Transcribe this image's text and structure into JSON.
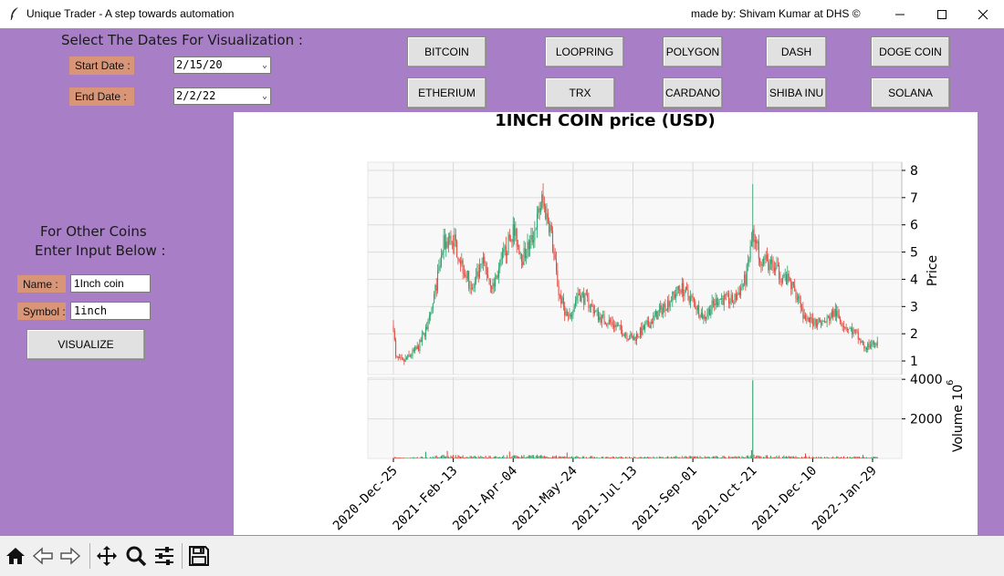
{
  "window": {
    "title": "Unique Trader - A step towards automation",
    "credit": "made by: Shivam Kumar at DHS ©",
    "icons": [
      "feather-icon",
      "minimize-icon",
      "maximize-icon",
      "close-icon"
    ]
  },
  "dates": {
    "heading": "Select The Dates For Visualization :",
    "start_label": "Start Date :",
    "start_value": "2/15/20",
    "end_label": "End Date :",
    "end_value": "2/2/22"
  },
  "coins": {
    "row1": [
      "BITCOIN",
      "LOOPRING",
      "POLYGON",
      "DASH",
      "DOGE COIN"
    ],
    "row2": [
      "ETHERIUM",
      "TRX",
      "CARDANO",
      "SHIBA INU",
      "SOLANA"
    ]
  },
  "other": {
    "heading1": "For Other Coins",
    "heading2": "Enter Input Below :",
    "name_label": "Name :",
    "name_value": "1Inch coin",
    "symbol_label": "Symbol :",
    "symbol_value": "1inch",
    "visualize_label": "VISUALIZE"
  },
  "toolbar": {
    "icons": [
      "home-icon",
      "back-icon",
      "forward-icon",
      "pan-icon",
      "zoom-icon",
      "configure-icon",
      "save-icon"
    ]
  },
  "chart_data": {
    "type": "candlestick",
    "title": "1INCH COIN price (USD)",
    "ylabel": "Price",
    "ylim": [
      0.5,
      8.3
    ],
    "yticks": [
      1,
      2,
      3,
      4,
      5,
      6,
      7,
      8
    ],
    "volume_label": "Volume  10",
    "volume_exponent": "6",
    "volume_ylim": [
      0,
      4100
    ],
    "volume_yticks": [
      2000,
      4000
    ],
    "xticks": [
      "2020-Dec-25",
      "2021-Feb-13",
      "2021-Apr-04",
      "2021-May-24",
      "2021-Jul-13",
      "2021-Sep-01",
      "2021-Oct-21",
      "2021-Dec-10",
      "2022-Jan-29"
    ],
    "xtick_dates": [
      "2020-12-25",
      "2021-02-13",
      "2021-04-04",
      "2021-05-24",
      "2021-07-13",
      "2021-09-01",
      "2021-10-21",
      "2021-12-10",
      "2022-01-29"
    ],
    "x_start": "2020-12-25",
    "x_end": "2022-02-02",
    "grid": true,
    "up_color": "#26a269",
    "down_color": "#e5453b",
    "close_anchors": [
      {
        "date": "2020-12-25",
        "price": 2.3
      },
      {
        "date": "2020-12-27",
        "price": 1.1
      },
      {
        "date": "2021-01-02",
        "price": 0.95
      },
      {
        "date": "2021-01-15",
        "price": 1.5
      },
      {
        "date": "2021-01-25",
        "price": 2.6
      },
      {
        "date": "2021-02-05",
        "price": 5.3
      },
      {
        "date": "2021-02-13",
        "price": 5.5
      },
      {
        "date": "2021-02-20",
        "price": 4.6
      },
      {
        "date": "2021-03-01",
        "price": 3.6
      },
      {
        "date": "2021-03-10",
        "price": 4.6
      },
      {
        "date": "2021-03-18",
        "price": 3.7
      },
      {
        "date": "2021-03-28",
        "price": 5.0
      },
      {
        "date": "2021-04-04",
        "price": 5.8
      },
      {
        "date": "2021-04-12",
        "price": 4.8
      },
      {
        "date": "2021-04-20",
        "price": 5.5
      },
      {
        "date": "2021-04-28",
        "price": 6.9
      },
      {
        "date": "2021-05-05",
        "price": 5.9
      },
      {
        "date": "2021-05-12",
        "price": 3.5
      },
      {
        "date": "2021-05-20",
        "price": 2.5
      },
      {
        "date": "2021-05-28",
        "price": 3.5
      },
      {
        "date": "2021-06-05",
        "price": 3.2
      },
      {
        "date": "2021-06-15",
        "price": 2.6
      },
      {
        "date": "2021-06-25",
        "price": 2.4
      },
      {
        "date": "2021-07-13",
        "price": 1.8
      },
      {
        "date": "2021-07-25",
        "price": 2.3
      },
      {
        "date": "2021-08-10",
        "price": 3.1
      },
      {
        "date": "2021-08-22",
        "price": 3.7
      },
      {
        "date": "2021-09-01",
        "price": 3.2
      },
      {
        "date": "2021-09-10",
        "price": 2.6
      },
      {
        "date": "2021-09-22",
        "price": 3.3
      },
      {
        "date": "2021-10-05",
        "price": 3.2
      },
      {
        "date": "2021-10-15",
        "price": 4.0
      },
      {
        "date": "2021-10-21",
        "price": 5.6
      },
      {
        "date": "2021-10-28",
        "price": 4.8
      },
      {
        "date": "2021-11-10",
        "price": 4.3
      },
      {
        "date": "2021-11-20",
        "price": 3.9
      },
      {
        "date": "2021-11-28",
        "price": 3.4
      },
      {
        "date": "2021-12-04",
        "price": 2.4
      },
      {
        "date": "2021-12-10",
        "price": 2.5
      },
      {
        "date": "2021-12-20",
        "price": 2.4
      },
      {
        "date": "2021-12-28",
        "price": 2.8
      },
      {
        "date": "2022-01-06",
        "price": 2.3
      },
      {
        "date": "2022-01-15",
        "price": 2.0
      },
      {
        "date": "2022-01-22",
        "price": 1.5
      },
      {
        "date": "2022-02-02",
        "price": 1.7
      }
    ],
    "volume_base": 60,
    "volume_spikes": [
      {
        "date": "2021-01-21",
        "volume": 340
      },
      {
        "date": "2021-02-08",
        "volume": 380
      },
      {
        "date": "2021-04-01",
        "volume": 350
      },
      {
        "date": "2021-05-19",
        "volume": 300
      },
      {
        "date": "2021-10-21",
        "volume": 3950
      },
      {
        "date": "2021-10-20",
        "volume": 420
      },
      {
        "date": "2021-12-04",
        "volume": 250
      },
      {
        "date": "2022-01-21",
        "volume": 180
      }
    ]
  }
}
